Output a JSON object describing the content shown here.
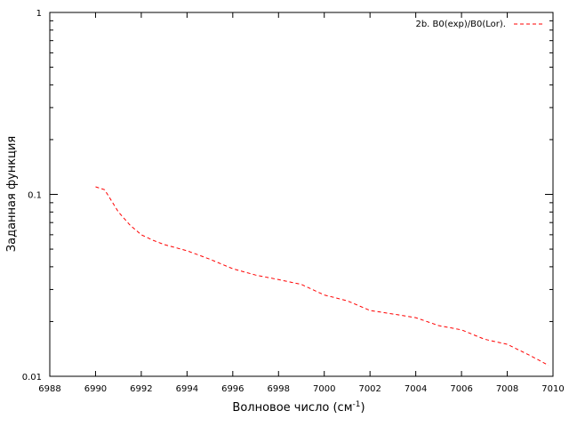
{
  "chart_data": {
    "type": "line",
    "title": "",
    "xlabel": "Волновое число (см",
    "xlabel_sup": "-1",
    "xlabel_close": ")",
    "ylabel": "Заданная функция",
    "xlim": [
      6988,
      7010
    ],
    "ylim": [
      0.01,
      1
    ],
    "yscale": "log",
    "grid": false,
    "legend_position": "top-right",
    "x_ticks": [
      "6988",
      "6990",
      "6992",
      "6994",
      "6996",
      "6998",
      "7000",
      "7002",
      "7004",
      "7006",
      "7008",
      "7010"
    ],
    "y_ticks": [
      "0.01",
      "0.1",
      "1"
    ],
    "series": [
      {
        "name": "2b. B0(exp)/B0(Lor).",
        "color": "#ff0000",
        "line_style": "dashed",
        "points": [
          [
            6990.0,
            0.11
          ],
          [
            6990.4,
            0.106
          ],
          [
            6991.0,
            0.08
          ],
          [
            6991.5,
            0.068
          ],
          [
            6992.0,
            0.06
          ],
          [
            6992.5,
            0.056
          ],
          [
            6993.0,
            0.053
          ],
          [
            6994.0,
            0.049
          ],
          [
            6995.0,
            0.044
          ],
          [
            6996.0,
            0.039
          ],
          [
            6997.0,
            0.036
          ],
          [
            6998.0,
            0.034
          ],
          [
            6999.0,
            0.032
          ],
          [
            7000.0,
            0.028
          ],
          [
            7001.0,
            0.026
          ],
          [
            7002.0,
            0.023
          ],
          [
            7003.0,
            0.022
          ],
          [
            7004.0,
            0.021
          ],
          [
            7005.0,
            0.019
          ],
          [
            7006.0,
            0.018
          ],
          [
            7007.0,
            0.016
          ],
          [
            7008.0,
            0.015
          ],
          [
            7009.0,
            0.013
          ],
          [
            7009.8,
            0.0115
          ]
        ]
      }
    ]
  }
}
